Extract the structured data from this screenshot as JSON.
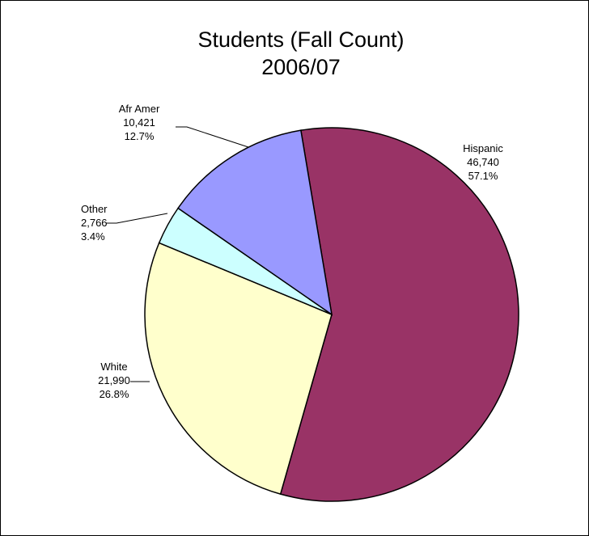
{
  "chart_data": {
    "type": "pie",
    "title": [
      "Students (Fall Count)",
      "2006/07"
    ],
    "slices": [
      {
        "label": "Hispanic",
        "value": 46740,
        "value_label": "46,740",
        "percent_label": "57.1%",
        "color": "#993366"
      },
      {
        "label": "White",
        "value": 21990,
        "value_label": "21,990",
        "percent_label": "26.8%",
        "color": "#FFFFCC"
      },
      {
        "label": "Other",
        "value": 2766,
        "value_label": "2,766",
        "percent_label": "3.4%",
        "color": "#CCFFFF"
      },
      {
        "label": "Afr Amer",
        "value": 10421,
        "value_label": "10,421",
        "percent_label": "12.7%",
        "color": "#9999FF"
      }
    ]
  }
}
